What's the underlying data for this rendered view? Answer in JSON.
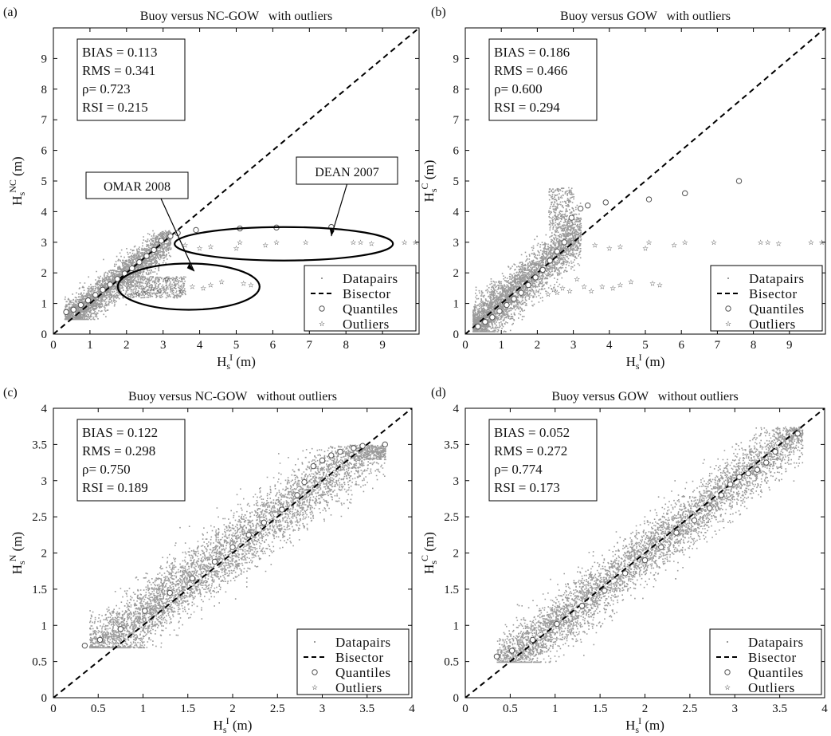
{
  "figure": {
    "panels": [
      "(a)",
      "(b)",
      "(c)",
      "(d)"
    ]
  },
  "legend_entries": [
    "Datapairs",
    "Bisector",
    "Quantiles",
    "Outliers"
  ],
  "colors": {
    "data": "#9a9a9a",
    "axis": "#000000",
    "quantile_edge": "#555555",
    "outlier": "#666666"
  },
  "chart_data": [
    {
      "type": "scatter",
      "panel": "(a)",
      "title": "Buoy versus NC-GOW   with outliers",
      "xlabel": "Hs^I (m)",
      "ylabel": "Hs^NC (m)",
      "xlim": [
        0,
        10
      ],
      "ylim": [
        0,
        10
      ],
      "xticks": [
        "0",
        "1",
        "2",
        "3",
        "4",
        "5",
        "6",
        "7",
        "8",
        "9"
      ],
      "yticks": [
        "0",
        "1",
        "2",
        "3",
        "4",
        "5",
        "6",
        "7",
        "8",
        "9"
      ],
      "stats": [
        "BIAS = 0.113",
        "RMS = 0.341",
        "ρ= 0.723",
        "RSI = 0.215"
      ],
      "legend_position": "bottom-right",
      "annotations": [
        "OMAR 2008",
        "DEAN 2007"
      ],
      "cloud": {
        "type": "outliers"
      },
      "quantiles": [
        [
          0.35,
          0.72
        ],
        [
          0.55,
          0.8
        ],
        [
          0.75,
          0.95
        ],
        [
          0.95,
          1.1
        ],
        [
          1.15,
          1.28
        ],
        [
          1.35,
          1.45
        ],
        [
          1.55,
          1.62
        ],
        [
          1.75,
          1.8
        ],
        [
          1.95,
          1.98
        ],
        [
          2.15,
          2.15
        ],
        [
          2.35,
          2.35
        ],
        [
          2.55,
          2.55
        ],
        [
          2.75,
          2.75
        ],
        [
          2.95,
          3.05
        ],
        [
          3.2,
          3.2
        ],
        [
          3.4,
          3.3
        ],
        [
          3.9,
          3.4
        ],
        [
          5.1,
          3.45
        ],
        [
          6.1,
          3.48
        ],
        [
          7.6,
          3.5
        ]
      ],
      "outliers": [
        [
          2.3,
          1.3
        ],
        [
          2.45,
          1.45
        ],
        [
          2.55,
          1.35
        ],
        [
          2.7,
          1.5
        ],
        [
          2.9,
          1.4
        ],
        [
          3.1,
          1.8
        ],
        [
          3.3,
          1.55
        ],
        [
          3.5,
          1.4
        ],
        [
          3.8,
          1.55
        ],
        [
          4.1,
          1.5
        ],
        [
          4.3,
          1.6
        ],
        [
          4.6,
          1.7
        ],
        [
          5.2,
          1.65
        ],
        [
          5.4,
          1.6
        ],
        [
          3.6,
          2.9
        ],
        [
          4.0,
          2.8
        ],
        [
          4.3,
          2.85
        ],
        [
          5.0,
          2.8
        ],
        [
          5.1,
          3.0
        ],
        [
          5.8,
          2.9
        ],
        [
          6.1,
          3.0
        ],
        [
          6.9,
          3.0
        ],
        [
          8.2,
          3.0
        ],
        [
          8.4,
          3.0
        ],
        [
          8.7,
          2.95
        ],
        [
          9.6,
          3.0
        ],
        [
          9.9,
          3.0
        ]
      ]
    },
    {
      "type": "scatter",
      "panel": "(b)",
      "title": "Buoy versus GOW   with outliers",
      "xlabel": "Hs^I (m)",
      "ylabel": "Hs^C (m)",
      "xlim": [
        0,
        10
      ],
      "ylim": [
        0,
        10
      ],
      "xticks": [
        "0",
        "1",
        "2",
        "3",
        "4",
        "5",
        "6",
        "7",
        "8",
        "9"
      ],
      "yticks": [
        "0",
        "1",
        "2",
        "3",
        "4",
        "5",
        "6",
        "7",
        "8",
        "9"
      ],
      "stats": [
        "BIAS = 0.186",
        "RMS = 0.466",
        "ρ= 0.600",
        "RSI = 0.294"
      ],
      "legend_position": "bottom-right",
      "cloud": {
        "type": "wide"
      },
      "quantiles": [
        [
          0.35,
          0.25
        ],
        [
          0.55,
          0.4
        ],
        [
          0.75,
          0.55
        ],
        [
          0.95,
          0.75
        ],
        [
          1.15,
          0.95
        ],
        [
          1.35,
          1.15
        ],
        [
          1.55,
          1.35
        ],
        [
          1.75,
          1.6
        ],
        [
          1.95,
          1.85
        ],
        [
          2.15,
          2.1
        ],
        [
          2.35,
          2.4
        ],
        [
          2.55,
          2.7
        ],
        [
          2.75,
          3.0
        ],
        [
          2.95,
          3.8
        ],
        [
          3.2,
          4.1
        ],
        [
          3.4,
          4.2
        ],
        [
          3.9,
          4.3
        ],
        [
          5.1,
          4.4
        ],
        [
          6.1,
          4.6
        ],
        [
          7.6,
          5.0
        ]
      ],
      "outliers": [
        [
          2.3,
          1.3
        ],
        [
          2.45,
          1.45
        ],
        [
          2.55,
          1.35
        ],
        [
          2.7,
          1.5
        ],
        [
          2.9,
          1.4
        ],
        [
          3.1,
          1.8
        ],
        [
          3.3,
          1.55
        ],
        [
          3.5,
          1.4
        ],
        [
          3.8,
          1.55
        ],
        [
          4.1,
          1.5
        ],
        [
          4.3,
          1.6
        ],
        [
          4.6,
          1.7
        ],
        [
          5.2,
          1.65
        ],
        [
          5.4,
          1.6
        ],
        [
          3.6,
          2.9
        ],
        [
          4.0,
          2.8
        ],
        [
          4.3,
          2.85
        ],
        [
          5.0,
          2.8
        ],
        [
          5.1,
          3.0
        ],
        [
          5.8,
          2.9
        ],
        [
          6.1,
          3.0
        ],
        [
          6.9,
          3.0
        ],
        [
          8.2,
          3.0
        ],
        [
          8.4,
          3.0
        ],
        [
          8.7,
          2.95
        ],
        [
          9.6,
          3.0
        ],
        [
          9.9,
          3.0
        ]
      ]
    },
    {
      "type": "scatter",
      "panel": "(c)",
      "title": "Buoy versus NC-GOW   without outliers",
      "xlabel": "Hs^I (m)",
      "ylabel": "Hs^N (m)",
      "xlim": [
        0,
        4
      ],
      "ylim": [
        0,
        4
      ],
      "xticks": [
        "0",
        "0.5",
        "1",
        "1.5",
        "2",
        "2.5",
        "3",
        "3.5",
        "4"
      ],
      "yticks": [
        "0",
        "0.5",
        "1",
        "1.5",
        "2",
        "2.5",
        "3",
        "3.5",
        "4"
      ],
      "stats": [
        "BIAS = 0.122",
        "RMS = 0.298",
        "ρ= 0.750",
        "RSI = 0.189"
      ],
      "legend_position": "bottom-right",
      "cloud": {
        "type": "no_outliers_nc"
      },
      "quantiles": [
        [
          0.35,
          0.72
        ],
        [
          0.52,
          0.8
        ],
        [
          0.75,
          0.95
        ],
        [
          1.02,
          1.2
        ],
        [
          1.3,
          1.45
        ],
        [
          1.55,
          1.65
        ],
        [
          1.8,
          1.88
        ],
        [
          2.0,
          2.08
        ],
        [
          2.18,
          2.25
        ],
        [
          2.35,
          2.42
        ],
        [
          2.55,
          2.6
        ],
        [
          2.72,
          2.8
        ],
        [
          2.8,
          2.98
        ],
        [
          2.9,
          3.2
        ],
        [
          3.0,
          3.28
        ],
        [
          3.1,
          3.35
        ],
        [
          3.2,
          3.4
        ],
        [
          3.35,
          3.45
        ],
        [
          3.45,
          3.48
        ],
        [
          3.7,
          3.5
        ]
      ],
      "outliers": []
    },
    {
      "type": "scatter",
      "panel": "(d)",
      "title": "Buoy versus GOW   without outliers",
      "xlabel": "Hs^I (m)",
      "ylabel": "Hs^C (m)",
      "xlim": [
        0,
        4
      ],
      "ylim": [
        0,
        4
      ],
      "xticks": [
        "0",
        "0.5",
        "1",
        "1.5",
        "2",
        "2.5",
        "3",
        "3.5",
        "4"
      ],
      "yticks": [
        "0",
        "0.5",
        "1",
        "1.5",
        "2",
        "2.5",
        "3",
        "3.5",
        "4"
      ],
      "stats": [
        "BIAS = 0.052",
        "RMS = 0.272",
        "ρ= 0.774",
        "RSI = 0.173"
      ],
      "legend_position": "bottom-right",
      "cloud": {
        "type": "no_outliers_gow"
      },
      "quantiles": [
        [
          0.35,
          0.57
        ],
        [
          0.52,
          0.65
        ],
        [
          0.75,
          0.8
        ],
        [
          1.02,
          1.02
        ],
        [
          1.3,
          1.27
        ],
        [
          1.55,
          1.48
        ],
        [
          1.78,
          1.72
        ],
        [
          2.0,
          1.9
        ],
        [
          2.18,
          2.08
        ],
        [
          2.35,
          2.28
        ],
        [
          2.55,
          2.45
        ],
        [
          2.72,
          2.62
        ],
        [
          2.85,
          2.8
        ],
        [
          2.95,
          2.95
        ],
        [
          3.05,
          3.05
        ],
        [
          3.15,
          3.1
        ],
        [
          3.25,
          3.15
        ],
        [
          3.35,
          3.25
        ],
        [
          3.45,
          3.4
        ],
        [
          3.7,
          3.65
        ]
      ],
      "outliers": []
    }
  ]
}
